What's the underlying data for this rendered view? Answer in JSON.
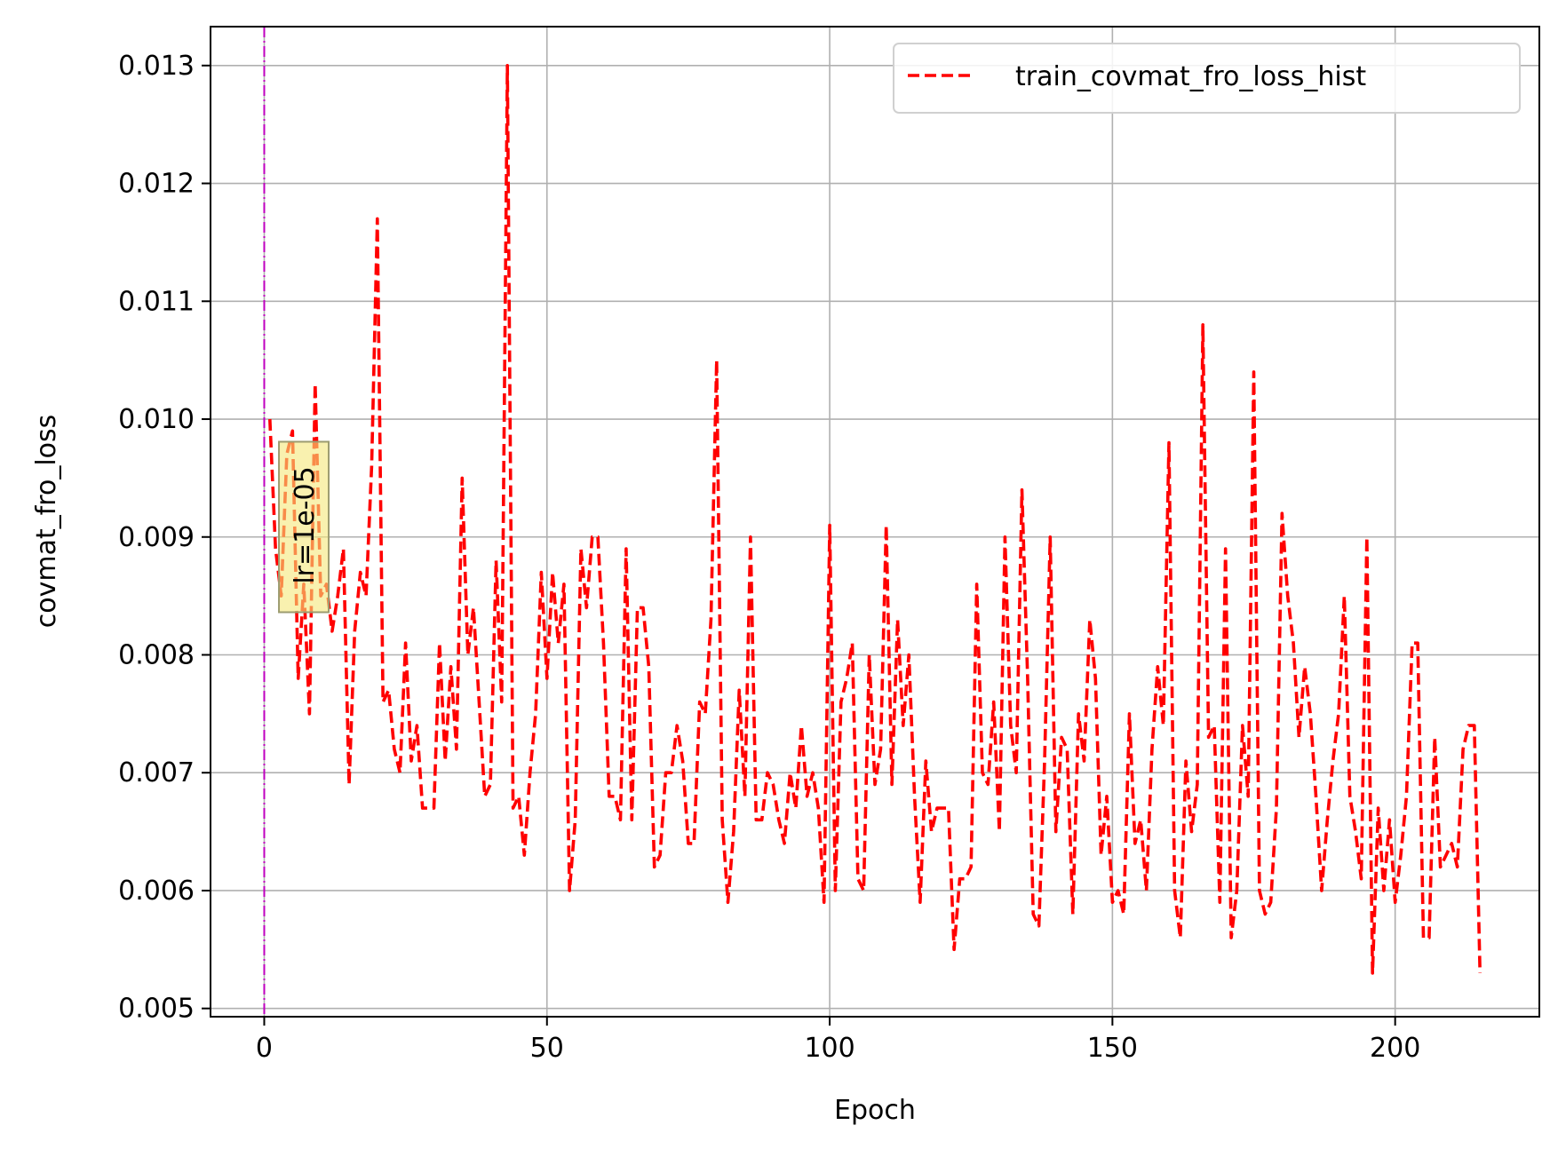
{
  "chart_data": {
    "type": "line",
    "title": "",
    "xlabel": "Epoch",
    "ylabel": "covmat_fro_loss",
    "xlim": [
      -9.5,
      225.5
    ],
    "ylim": [
      0.00493,
      0.01333
    ],
    "x_ticks": [
      0,
      50,
      100,
      150,
      200
    ],
    "x_tick_labels": [
      "0",
      "50",
      "100",
      "150",
      "200"
    ],
    "y_ticks": [
      0.005,
      0.006,
      0.007,
      0.008,
      0.009,
      0.01,
      0.011,
      0.012,
      0.013
    ],
    "y_tick_labels": [
      "0.005",
      "0.006",
      "0.007",
      "0.008",
      "0.009",
      "0.010",
      "0.011",
      "0.012",
      "0.013"
    ],
    "grid": true,
    "legend_position": "top-right",
    "series": [
      {
        "name": "train_covmat_fro_loss_hist",
        "color": "#ff0000",
        "line_style": "dashed",
        "x": [
          1,
          2,
          3,
          4,
          5,
          6,
          7,
          8,
          9,
          10,
          11,
          12,
          13,
          14,
          15,
          16,
          17,
          18,
          19,
          20,
          21,
          22,
          23,
          24,
          25,
          26,
          27,
          28,
          29,
          30,
          31,
          32,
          33,
          34,
          35,
          36,
          37,
          38,
          39,
          40,
          41,
          42,
          43,
          44,
          45,
          46,
          47,
          48,
          49,
          50,
          51,
          52,
          53,
          54,
          55,
          56,
          57,
          58,
          59,
          60,
          61,
          62,
          63,
          64,
          65,
          66,
          67,
          68,
          69,
          70,
          71,
          72,
          73,
          74,
          75,
          76,
          77,
          78,
          79,
          80,
          81,
          82,
          83,
          84,
          85,
          86,
          87,
          88,
          89,
          90,
          91,
          92,
          93,
          94,
          95,
          96,
          97,
          98,
          99,
          100,
          101,
          102,
          103,
          104,
          105,
          106,
          107,
          108,
          109,
          110,
          111,
          112,
          113,
          114,
          115,
          116,
          117,
          118,
          119,
          120,
          121,
          122,
          123,
          124,
          125,
          126,
          127,
          128,
          129,
          130,
          131,
          132,
          133,
          134,
          135,
          136,
          137,
          138,
          139,
          140,
          141,
          142,
          143,
          144,
          145,
          146,
          147,
          148,
          149,
          150,
          151,
          152,
          153,
          154,
          155,
          156,
          157,
          158,
          159,
          160,
          161,
          162,
          163,
          164,
          165,
          166,
          167,
          168,
          169,
          170,
          171,
          172,
          173,
          174,
          175,
          176,
          177,
          178,
          179,
          180,
          181,
          182,
          183,
          184,
          185,
          186,
          187,
          188,
          189,
          190,
          191,
          192,
          193,
          194,
          195,
          196,
          197,
          198,
          199,
          200,
          201,
          202,
          203,
          204,
          205,
          206,
          207,
          208,
          209,
          210,
          211,
          212,
          213,
          214,
          215
        ],
        "values": [
          0.01,
          0.0089,
          0.0085,
          0.0097,
          0.0099,
          0.0078,
          0.0086,
          0.0075,
          0.0103,
          0.0085,
          0.0086,
          0.0082,
          0.0085,
          0.0089,
          0.0069,
          0.0082,
          0.0087,
          0.0085,
          0.0096,
          0.0117,
          0.0076,
          0.0077,
          0.0072,
          0.007,
          0.0081,
          0.0071,
          0.0074,
          0.0067,
          0.0067,
          0.0067,
          0.0081,
          0.0071,
          0.0079,
          0.0072,
          0.0095,
          0.008,
          0.0084,
          0.0076,
          0.0068,
          0.0069,
          0.0088,
          0.0076,
          0.013,
          0.0067,
          0.0068,
          0.0063,
          0.007,
          0.0075,
          0.0087,
          0.0078,
          0.0087,
          0.0081,
          0.0086,
          0.006,
          0.0066,
          0.0089,
          0.0084,
          0.009,
          0.009,
          0.0081,
          0.0068,
          0.0068,
          0.0066,
          0.0089,
          0.0066,
          0.0084,
          0.0084,
          0.0079,
          0.0062,
          0.0063,
          0.007,
          0.007,
          0.0074,
          0.0071,
          0.0064,
          0.0064,
          0.0076,
          0.0075,
          0.0083,
          0.0105,
          0.0066,
          0.0059,
          0.0065,
          0.0077,
          0.0068,
          0.009,
          0.0066,
          0.0066,
          0.007,
          0.0069,
          0.0066,
          0.0064,
          0.007,
          0.0067,
          0.0074,
          0.0068,
          0.007,
          0.0067,
          0.0059,
          0.0091,
          0.006,
          0.0076,
          0.0078,
          0.0081,
          0.0061,
          0.006,
          0.008,
          0.0069,
          0.0072,
          0.0091,
          0.0069,
          0.0083,
          0.0074,
          0.008,
          0.0068,
          0.0059,
          0.0071,
          0.0065,
          0.0067,
          0.0067,
          0.0067,
          0.0055,
          0.0061,
          0.0061,
          0.0062,
          0.0086,
          0.007,
          0.0069,
          0.0076,
          0.0065,
          0.009,
          0.0074,
          0.007,
          0.0094,
          0.0078,
          0.0058,
          0.0057,
          0.0071,
          0.009,
          0.0065,
          0.0073,
          0.0072,
          0.0058,
          0.0075,
          0.0071,
          0.0083,
          0.0078,
          0.0063,
          0.0068,
          0.0059,
          0.006,
          0.0058,
          0.0075,
          0.0064,
          0.0066,
          0.006,
          0.0072,
          0.0079,
          0.0074,
          0.0098,
          0.006,
          0.0056,
          0.0071,
          0.0065,
          0.0069,
          0.0108,
          0.0073,
          0.0074,
          0.0059,
          0.0089,
          0.0056,
          0.006,
          0.0074,
          0.0068,
          0.0104,
          0.006,
          0.0058,
          0.0059,
          0.0067,
          0.0092,
          0.0085,
          0.0081,
          0.0073,
          0.0079,
          0.0075,
          0.0068,
          0.006,
          0.0066,
          0.0071,
          0.0075,
          0.0085,
          0.0068,
          0.0065,
          0.0061,
          0.009,
          0.0053,
          0.0067,
          0.006,
          0.0066,
          0.0059,
          0.0063,
          0.0068,
          0.0081,
          0.0081,
          0.0056,
          0.0056,
          0.0073,
          0.0062,
          0.0063,
          0.0064,
          0.0062,
          0.0072,
          0.0074,
          0.0074,
          0.0053
        ]
      }
    ],
    "vline": {
      "x": 0,
      "color": "#bf00bf",
      "line_style": "dash-dot"
    },
    "annotation": {
      "text": "lr=1e-05",
      "x": 7,
      "y": 0.0091,
      "rotation": 90,
      "box_color": "#f5e87a"
    }
  }
}
